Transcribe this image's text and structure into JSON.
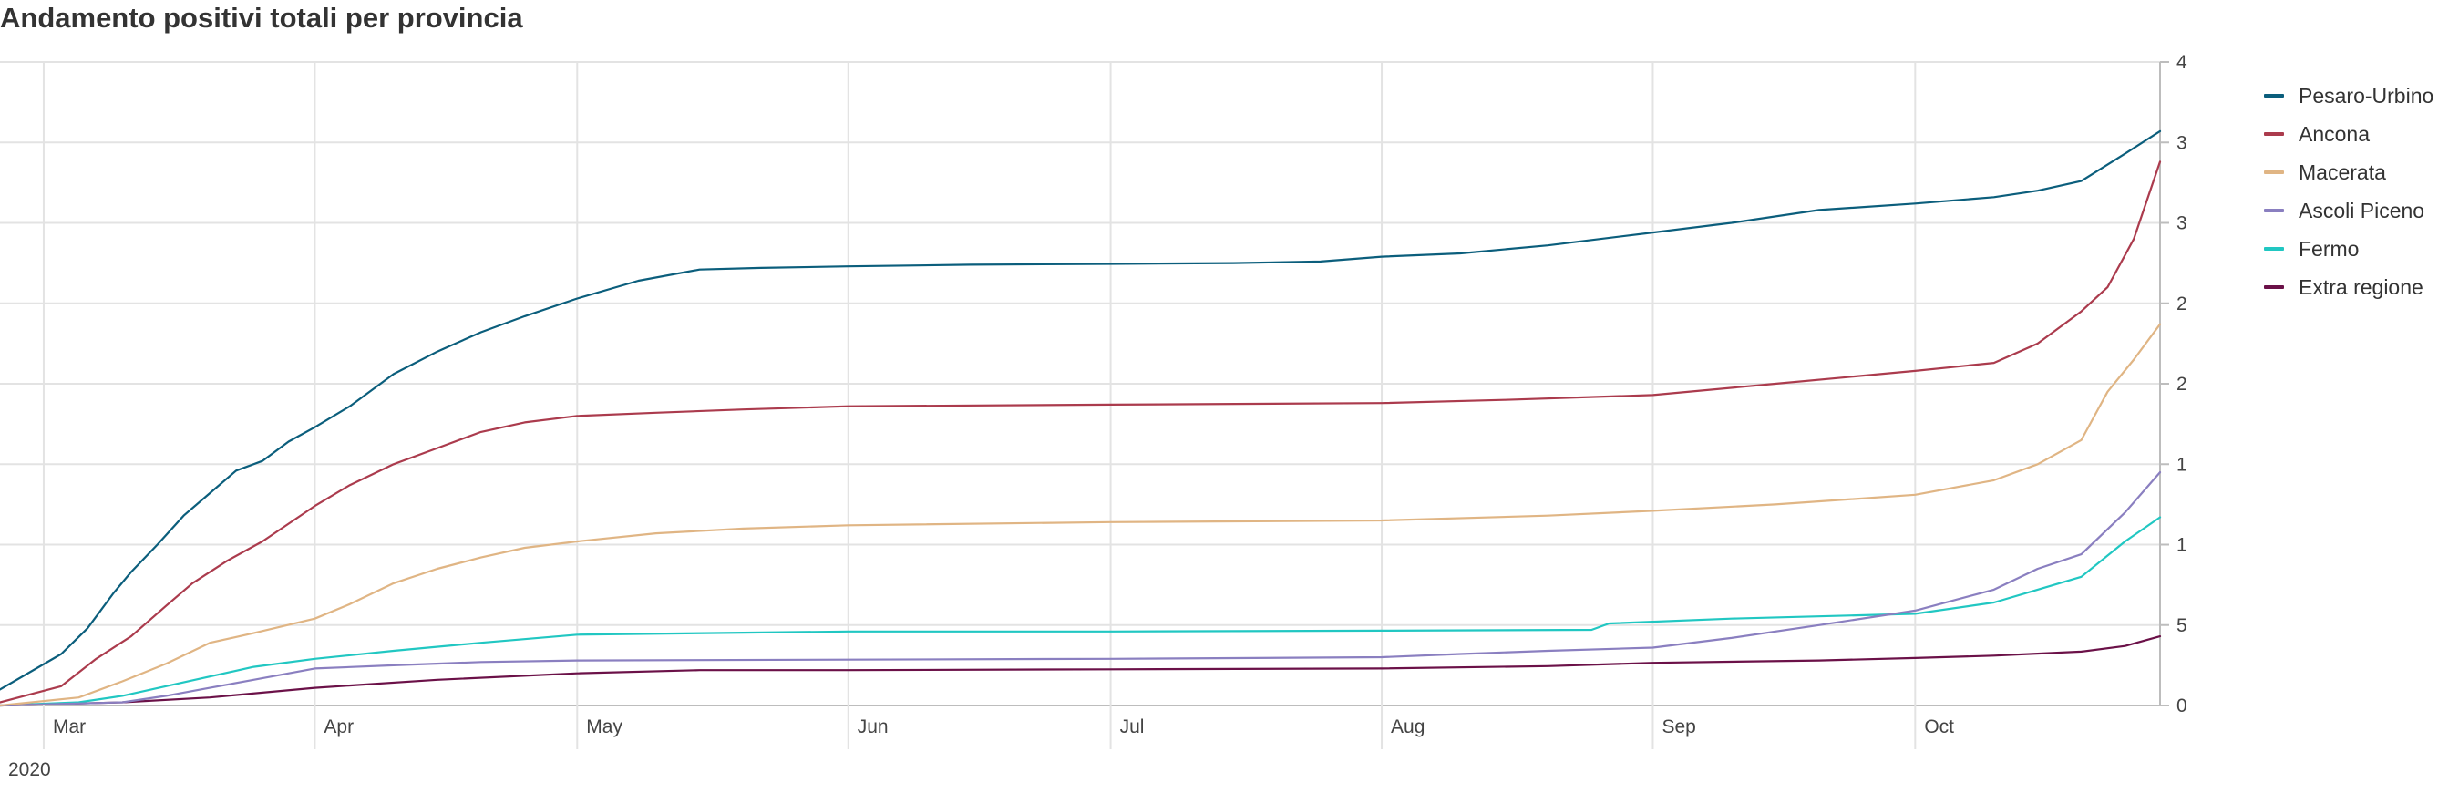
{
  "chart_data": {
    "type": "line",
    "title": "Andamento positivi totali per provincia",
    "xlabel": "",
    "ylabel": "",
    "year_label": "2020",
    "x_domain": [
      "2020-02-25",
      "2020-10-29"
    ],
    "x_ticks": [
      {
        "date": "2020-03-01",
        "label": "Mar"
      },
      {
        "date": "2020-04-01",
        "label": "Apr"
      },
      {
        "date": "2020-05-01",
        "label": "May"
      },
      {
        "date": "2020-06-01",
        "label": "Jun"
      },
      {
        "date": "2020-07-01",
        "label": "Jul"
      },
      {
        "date": "2020-08-01",
        "label": "Aug"
      },
      {
        "date": "2020-09-01",
        "label": "Sep"
      },
      {
        "date": "2020-10-01",
        "label": "Oct"
      }
    ],
    "ylim": [
      0,
      4000
    ],
    "y_ticks": [
      {
        "value": 0,
        "label": "0"
      },
      {
        "value": 500,
        "label": "500"
      },
      {
        "value": 1000,
        "label": "1.000"
      },
      {
        "value": 1500,
        "label": "1.500"
      },
      {
        "value": 2000,
        "label": "2.000"
      },
      {
        "value": 2500,
        "label": "2.500"
      },
      {
        "value": 3000,
        "label": "3.000"
      },
      {
        "value": 3500,
        "label": "3.500"
      },
      {
        "value": 4000,
        "label": "4.000"
      }
    ],
    "grid": true,
    "legend_position": "right",
    "series": [
      {
        "name": "Pesaro-Urbino",
        "color": "#0b5e7c",
        "x": [
          "2020-02-25",
          "2020-03-03",
          "2020-03-06",
          "2020-03-09",
          "2020-03-11",
          "2020-03-14",
          "2020-03-17",
          "2020-03-20",
          "2020-03-23",
          "2020-03-26",
          "2020-03-29",
          "2020-04-01",
          "2020-04-05",
          "2020-04-10",
          "2020-04-15",
          "2020-04-20",
          "2020-04-25",
          "2020-05-01",
          "2020-05-08",
          "2020-05-15",
          "2020-05-22",
          "2020-06-01",
          "2020-06-15",
          "2020-07-01",
          "2020-07-15",
          "2020-07-25",
          "2020-08-01",
          "2020-08-10",
          "2020-08-20",
          "2020-09-01",
          "2020-09-10",
          "2020-09-20",
          "2020-10-01",
          "2020-10-10",
          "2020-10-15",
          "2020-10-20",
          "2020-10-25",
          "2020-10-29"
        ],
        "y": [
          100,
          320,
          480,
          700,
          830,
          1000,
          1180,
          1320,
          1460,
          1520,
          1640,
          1730,
          1860,
          2060,
          2200,
          2320,
          2420,
          2530,
          2640,
          2710,
          2720,
          2730,
          2740,
          2745,
          2750,
          2760,
          2790,
          2810,
          2860,
          2940,
          3000,
          3080,
          3120,
          3160,
          3200,
          3260,
          3430,
          3570
        ]
      },
      {
        "name": "Ancona",
        "color": "#ab3b4d",
        "x": [
          "2020-02-25",
          "2020-03-03",
          "2020-03-07",
          "2020-03-11",
          "2020-03-15",
          "2020-03-18",
          "2020-03-22",
          "2020-03-26",
          "2020-04-01",
          "2020-04-05",
          "2020-04-10",
          "2020-04-15",
          "2020-04-20",
          "2020-04-25",
          "2020-05-01",
          "2020-05-10",
          "2020-05-20",
          "2020-06-01",
          "2020-07-01",
          "2020-08-01",
          "2020-08-15",
          "2020-09-01",
          "2020-09-15",
          "2020-10-01",
          "2020-10-10",
          "2020-10-15",
          "2020-10-20",
          "2020-10-23",
          "2020-10-26",
          "2020-10-29"
        ],
        "y": [
          20,
          120,
          290,
          430,
          620,
          760,
          900,
          1020,
          1240,
          1370,
          1500,
          1600,
          1700,
          1760,
          1800,
          1820,
          1840,
          1860,
          1870,
          1880,
          1900,
          1930,
          2000,
          2080,
          2130,
          2250,
          2450,
          2600,
          2900,
          3380
        ]
      },
      {
        "name": "Macerata",
        "color": "#e0b584",
        "x": [
          "2020-02-25",
          "2020-03-05",
          "2020-03-10",
          "2020-03-15",
          "2020-03-20",
          "2020-03-25",
          "2020-04-01",
          "2020-04-05",
          "2020-04-10",
          "2020-04-15",
          "2020-04-20",
          "2020-04-25",
          "2020-05-01",
          "2020-05-10",
          "2020-05-20",
          "2020-06-01",
          "2020-07-01",
          "2020-08-01",
          "2020-08-20",
          "2020-09-01",
          "2020-09-15",
          "2020-10-01",
          "2020-10-10",
          "2020-10-15",
          "2020-10-20",
          "2020-10-23",
          "2020-10-26",
          "2020-10-29"
        ],
        "y": [
          0,
          50,
          150,
          260,
          390,
          450,
          540,
          630,
          760,
          850,
          920,
          980,
          1020,
          1070,
          1100,
          1120,
          1140,
          1150,
          1180,
          1210,
          1250,
          1310,
          1400,
          1500,
          1650,
          1950,
          2150,
          2370
        ]
      },
      {
        "name": "Ascoli Piceno",
        "color": "#8a7fc0",
        "x": [
          "2020-02-25",
          "2020-03-10",
          "2020-03-15",
          "2020-03-20",
          "2020-03-25",
          "2020-04-01",
          "2020-04-10",
          "2020-04-20",
          "2020-05-01",
          "2020-06-01",
          "2020-07-01",
          "2020-08-01",
          "2020-08-10",
          "2020-08-20",
          "2020-09-01",
          "2020-09-10",
          "2020-09-20",
          "2020-10-01",
          "2020-10-10",
          "2020-10-15",
          "2020-10-20",
          "2020-10-25",
          "2020-10-29"
        ],
        "y": [
          0,
          20,
          60,
          110,
          160,
          230,
          250,
          270,
          280,
          285,
          290,
          300,
          320,
          340,
          360,
          420,
          500,
          590,
          720,
          850,
          940,
          1200,
          1450
        ]
      },
      {
        "name": "Fermo",
        "color": "#21c7c2",
        "x": [
          "2020-02-25",
          "2020-03-05",
          "2020-03-10",
          "2020-03-15",
          "2020-03-20",
          "2020-03-25",
          "2020-04-01",
          "2020-04-10",
          "2020-04-20",
          "2020-05-01",
          "2020-06-01",
          "2020-07-01",
          "2020-08-01",
          "2020-08-25",
          "2020-08-27",
          "2020-09-10",
          "2020-10-01",
          "2020-10-10",
          "2020-10-15",
          "2020-10-20",
          "2020-10-25",
          "2020-10-29"
        ],
        "y": [
          0,
          20,
          60,
          120,
          180,
          240,
          290,
          340,
          390,
          440,
          460,
          460,
          465,
          470,
          510,
          540,
          570,
          640,
          720,
          800,
          1020,
          1170
        ]
      },
      {
        "name": "Extra regione",
        "color": "#6b1148",
        "x": [
          "2020-02-25",
          "2020-03-10",
          "2020-03-20",
          "2020-04-01",
          "2020-04-15",
          "2020-05-01",
          "2020-05-15",
          "2020-06-01",
          "2020-07-01",
          "2020-08-01",
          "2020-08-20",
          "2020-09-01",
          "2020-09-20",
          "2020-10-01",
          "2020-10-10",
          "2020-10-20",
          "2020-10-25",
          "2020-10-29"
        ],
        "y": [
          0,
          20,
          50,
          110,
          160,
          200,
          220,
          220,
          225,
          230,
          245,
          265,
          280,
          295,
          310,
          335,
          370,
          430
        ]
      }
    ]
  }
}
